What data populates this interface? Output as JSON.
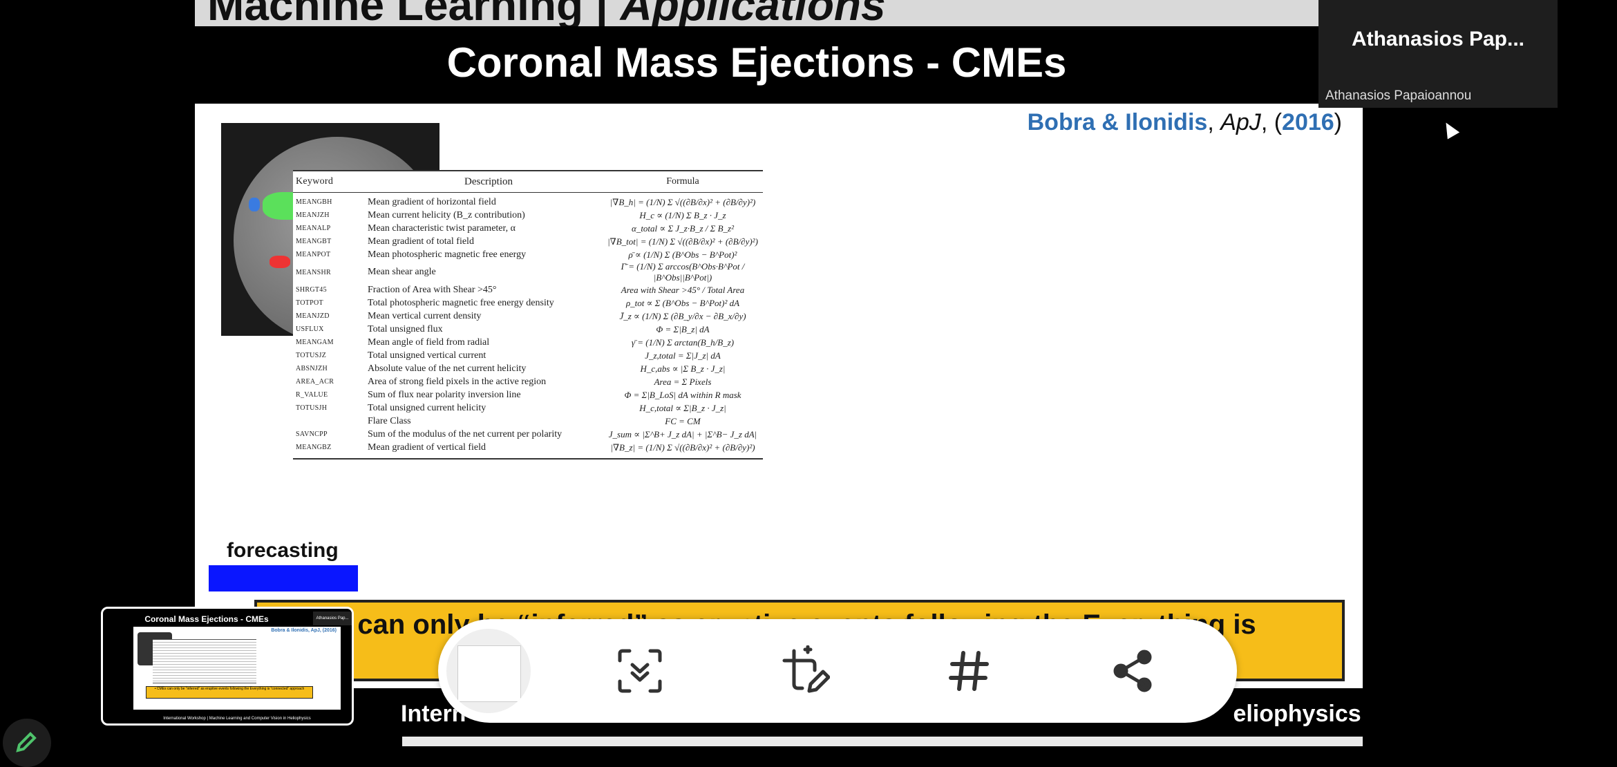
{
  "slide": {
    "top_banner": {
      "text_a": "Machine Learning | ",
      "text_b": "Applications"
    },
    "title": "Coronal Mass Ejections - CMEs",
    "citation": {
      "authors": "Bobra & Ilonidis",
      "sep1": ", ",
      "journal": "ApJ",
      "sep2": ", (",
      "year": "2016",
      "end": ")"
    },
    "table": {
      "headers": [
        "Keyword",
        "Description",
        "Formula"
      ],
      "rows": [
        {
          "keyword": "MEANGBH",
          "description": "Mean gradient of horizontal field",
          "formula": "|∇B_h| = (1/N) Σ √((∂B/∂x)² + (∂B/∂y)²)"
        },
        {
          "keyword": "MEANJZH",
          "description": "Mean current helicity (B_z contribution)",
          "formula": "H_c ∝ (1/N) Σ B_z · J_z"
        },
        {
          "keyword": "MEANALP",
          "description": "Mean characteristic twist parameter, α",
          "formula": "α_total ∝ Σ J_z·B_z / Σ B_z²"
        },
        {
          "keyword": "MEANGBT",
          "description": "Mean gradient of total field",
          "formula": "|∇B_tot| = (1/N) Σ √((∂B/∂x)² + (∂B/∂y)²)"
        },
        {
          "keyword": "MEANPOT",
          "description": "Mean photospheric magnetic free energy",
          "formula": "ρ̄ ∝ (1/N) Σ (B^Obs − B^Pot)²"
        },
        {
          "keyword": "MEANSHR",
          "description": "Mean shear angle",
          "formula": "Γ̄ = (1/N) Σ arccos(B^Obs·B^Pot / |B^Obs||B^Pot|)"
        },
        {
          "keyword": "SHRGT45",
          "description": "Fraction of Area with Shear >45°",
          "formula": "Area with Shear >45° / Total Area"
        },
        {
          "keyword": "TOTPOT",
          "description": "Total photospheric magnetic free energy density",
          "formula": "ρ_tot ∝ Σ (B^Obs − B^Pot)² dA"
        },
        {
          "keyword": "MEANJZD",
          "description": "Mean vertical current density",
          "formula": "J̄_z ∝ (1/N) Σ (∂B_y/∂x − ∂B_x/∂y)"
        },
        {
          "keyword": "USFLUX",
          "description": "Total unsigned flux",
          "formula": "Φ = Σ|B_z| dA"
        },
        {
          "keyword": "MEANGAM",
          "description": "Mean angle of field from radial",
          "formula": "γ̄ = (1/N) Σ arctan(B_h/B_z)"
        },
        {
          "keyword": "TOTUSJZ",
          "description": "Total unsigned vertical current",
          "formula": "J_z,total = Σ|J_z| dA"
        },
        {
          "keyword": "ABSNJZH",
          "description": "Absolute value of the net current helicity",
          "formula": "H_c,abs ∝ |Σ B_z · J_z|"
        },
        {
          "keyword": "AREA_ACR",
          "description": "Area of strong field pixels in the active region",
          "formula": "Area = Σ Pixels"
        },
        {
          "keyword": "R_VALUE",
          "description": "Sum of flux near polarity inversion line",
          "formula": "Φ = Σ|B_LoS| dA within R mask"
        },
        {
          "keyword": "TOTUSJH",
          "description": "Total unsigned current helicity",
          "formula": "H_c,total ∝ Σ|B_z · J_z|"
        },
        {
          "keyword": "",
          "description": "Flare Class",
          "formula": "FC = CM"
        },
        {
          "keyword": "SAVNCPP",
          "description": "Sum of the modulus of the net current per polarity",
          "formula": "J_sum ∝ |Σ^B+ J_z dA| + |Σ^B− J_z dA|"
        },
        {
          "keyword": "MEANGBZ",
          "description": "Mean gradient of vertical field",
          "formula": "|∇B_z| = (1/N) Σ √((∂B/∂x)² + (∂B/∂y)²)"
        }
      ]
    },
    "forecasting_label": "forecasting",
    "yellow_text": "MEs can only be “inferred” as eruptive events following the Everything is",
    "bottom_text_a": "Intern",
    "bottom_text_b": "eliophysics"
  },
  "participant": {
    "name": "Athanasios  Pap...",
    "full_name": "Athanasios Papaioannou"
  },
  "preview": {
    "title": "Coronal Mass Ejections - CMEs",
    "citation": "Bobra & Ilonidis, ApJ, (2016)",
    "yellow": "• CMEs can only be “inferred” as eruptive events following the Everything is “connected” approach",
    "bottom": "International Workshop | Machine Learning and Computer Vision in Heliophysics",
    "name": "Athanasios Pap..."
  },
  "toolbar": {
    "icons": [
      "scroll-capture-icon",
      "crop-edit-icon",
      "hashtag-icon",
      "share-icon"
    ]
  },
  "colors": {
    "accent_blue": "#2f6fb3",
    "yellow": "#f6bd19",
    "forecast_blue": "#0a16ff"
  }
}
